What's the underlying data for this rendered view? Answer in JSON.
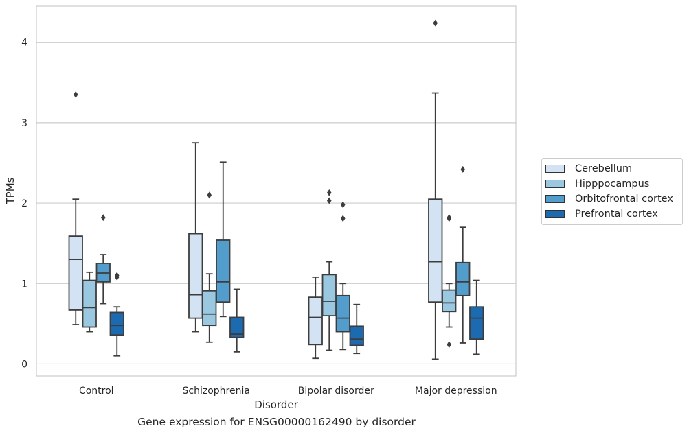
{
  "caption": "Gene expression for ENSG00000162490 by disorder",
  "chart_data": {
    "type": "box",
    "xlabel": "Disorder",
    "ylabel": "TPMs",
    "ylim": [
      -0.15,
      4.45
    ],
    "yticks": [
      0,
      1,
      2,
      3,
      4
    ],
    "grid": true,
    "legend_position": "right",
    "categories": [
      "Control",
      "Schizophrenia",
      "Bipolar disorder",
      "Major depression"
    ],
    "series": [
      {
        "name": "Cerebellum",
        "color": "#d3e3f3",
        "boxes": [
          {
            "whislo": 0.49,
            "q1": 0.67,
            "med": 1.3,
            "q3": 1.59,
            "whishi": 2.05,
            "fliers": [
              3.35
            ]
          },
          {
            "whislo": 0.4,
            "q1": 0.57,
            "med": 0.86,
            "q3": 1.62,
            "whishi": 2.75,
            "fliers": []
          },
          {
            "whislo": 0.07,
            "q1": 0.24,
            "med": 0.58,
            "q3": 0.83,
            "whishi": 1.08,
            "fliers": []
          },
          {
            "whislo": 0.06,
            "q1": 0.77,
            "med": 1.27,
            "q3": 2.05,
            "whishi": 3.37,
            "fliers": [
              4.24
            ]
          }
        ]
      },
      {
        "name": "Hipppocampus",
        "color": "#9ac8e0",
        "boxes": [
          {
            "whislo": 0.4,
            "q1": 0.46,
            "med": 0.7,
            "q3": 1.04,
            "whishi": 1.14,
            "fliers": []
          },
          {
            "whislo": 0.27,
            "q1": 0.48,
            "med": 0.62,
            "q3": 0.91,
            "whishi": 1.12,
            "fliers": [
              2.1
            ]
          },
          {
            "whislo": 0.17,
            "q1": 0.6,
            "med": 0.78,
            "q3": 1.11,
            "whishi": 1.27,
            "fliers": [
              2.13,
              2.03
            ]
          },
          {
            "whislo": 0.46,
            "q1": 0.65,
            "med": 0.76,
            "q3": 0.92,
            "whishi": 1.0,
            "fliers": [
              1.82,
              1.81,
              0.24
            ]
          }
        ]
      },
      {
        "name": "Orbitofrontal cortex",
        "color": "#529dcc",
        "boxes": [
          {
            "whislo": 0.75,
            "q1": 1.02,
            "med": 1.13,
            "q3": 1.25,
            "whishi": 1.36,
            "fliers": [
              1.82
            ]
          },
          {
            "whislo": 0.59,
            "q1": 0.77,
            "med": 1.02,
            "q3": 1.54,
            "whishi": 2.51,
            "fliers": []
          },
          {
            "whislo": 0.18,
            "q1": 0.4,
            "med": 0.57,
            "q3": 0.85,
            "whishi": 1.0,
            "fliers": [
              1.98,
              1.81
            ]
          },
          {
            "whislo": 0.26,
            "q1": 0.85,
            "med": 1.02,
            "q3": 1.26,
            "whishi": 1.7,
            "fliers": [
              2.42
            ]
          }
        ]
      },
      {
        "name": "Prefrontal cortex",
        "color": "#1c6aaf",
        "boxes": [
          {
            "whislo": 0.1,
            "q1": 0.36,
            "med": 0.48,
            "q3": 0.64,
            "whishi": 0.71,
            "fliers": [
              1.1,
              1.08
            ]
          },
          {
            "whislo": 0.15,
            "q1": 0.33,
            "med": 0.37,
            "q3": 0.58,
            "whishi": 0.93,
            "fliers": []
          },
          {
            "whislo": 0.13,
            "q1": 0.23,
            "med": 0.31,
            "q3": 0.47,
            "whishi": 0.74,
            "fliers": []
          },
          {
            "whislo": 0.12,
            "q1": 0.31,
            "med": 0.57,
            "q3": 0.71,
            "whishi": 1.04,
            "fliers": []
          }
        ]
      }
    ]
  }
}
